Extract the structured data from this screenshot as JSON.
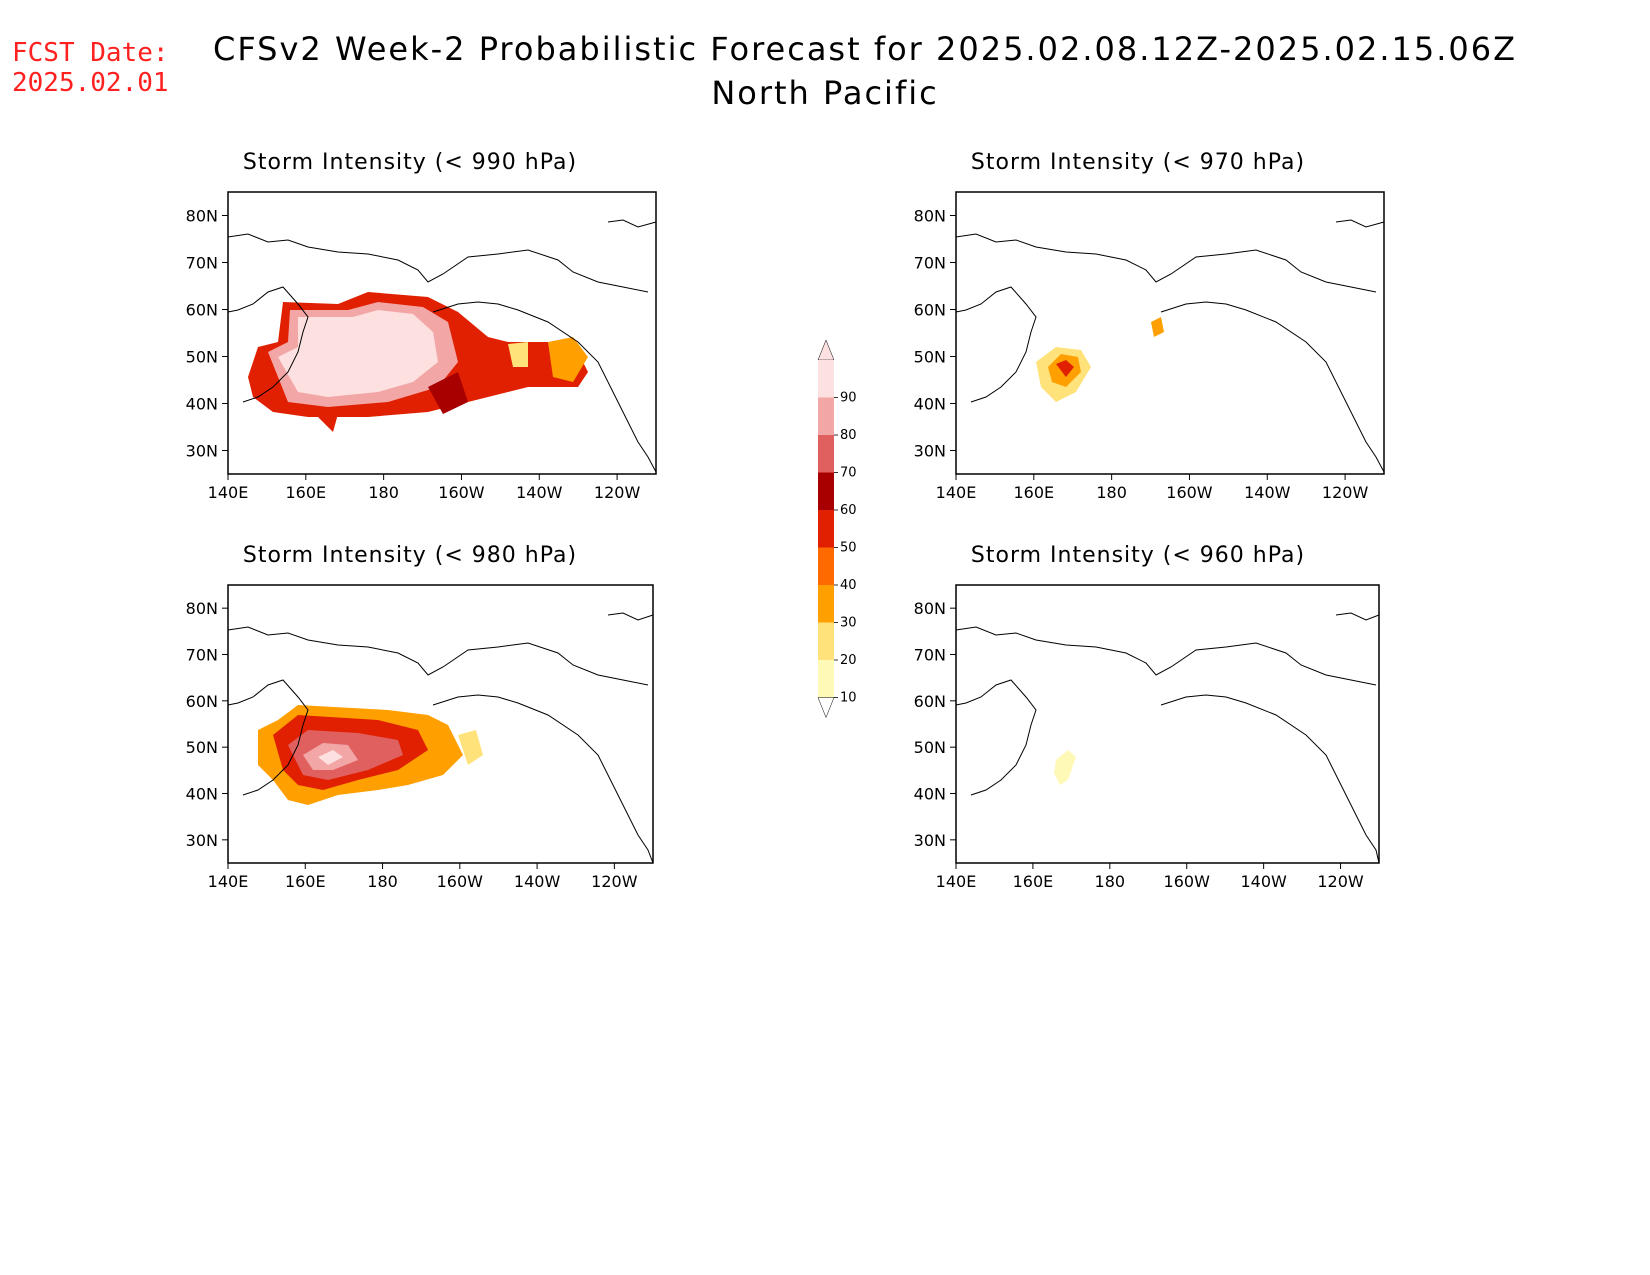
{
  "header": {
    "fcst_label": "FCST Date:",
    "fcst_date": "2025.02.01",
    "title": "CFSv2 Week-2 Probabilistic Forecast for 2025.02.08.12Z-2025.02.15.06Z",
    "region": "North Pacific"
  },
  "axes": {
    "lat_ticks": [
      "80N",
      "70N",
      "60N",
      "50N",
      "40N",
      "30N"
    ],
    "lon_ticks": [
      "140E",
      "160E",
      "180",
      "160W",
      "140W",
      "120W"
    ]
  },
  "panels": [
    {
      "id": "p990",
      "title": "Storm Intensity (< 990 hPa)",
      "coverage": "extensive"
    },
    {
      "id": "p970",
      "title": "Storm Intensity (< 970 hPa)",
      "coverage": "small"
    },
    {
      "id": "p980",
      "title": "Storm Intensity (< 980 hPa)",
      "coverage": "moderate"
    },
    {
      "id": "p960",
      "title": "Storm Intensity (< 960 hPa)",
      "coverage": "minimal"
    }
  ],
  "colorbar": {
    "levels": [
      "10",
      "20",
      "30",
      "40",
      "50",
      "60",
      "70",
      "80",
      "90"
    ],
    "colors": [
      "#fff9b8",
      "#ffe27a",
      "#ffa000",
      "#ff6a00",
      "#e02000",
      "#a80000",
      "#e06060",
      "#f2a6a6",
      "#fde0e0"
    ]
  }
}
